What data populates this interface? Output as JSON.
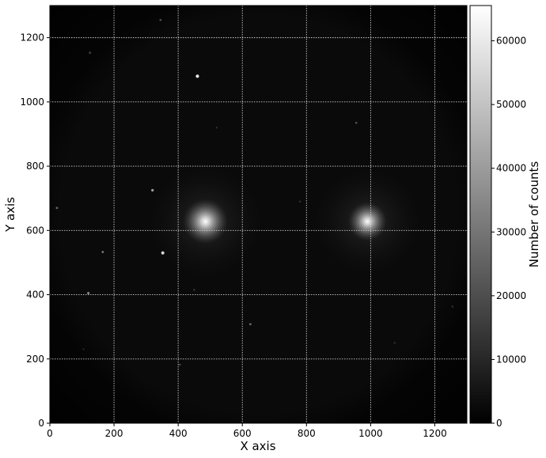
{
  "chart_data": {
    "type": "heatmap",
    "title": "",
    "xlabel": "X axis",
    "ylabel": "Y axis",
    "xlim": [
      0,
      1300
    ],
    "ylim": [
      0,
      1300
    ],
    "xticks": [
      0,
      200,
      400,
      600,
      800,
      1000,
      1200
    ],
    "yticks": [
      0,
      200,
      400,
      600,
      800,
      1000,
      1200
    ],
    "grid": true,
    "grid_style": "dotted",
    "colormap": "gray",
    "colorbar": {
      "label": "Number of counts",
      "range": [
        0,
        65535
      ],
      "ticks": [
        0,
        10000,
        20000,
        30000,
        40000,
        50000,
        60000
      ]
    },
    "image_description_points": [
      {
        "name": "galaxy-core-left",
        "x": 485,
        "y": 628,
        "value": 65000,
        "spread": 70,
        "halo": 180
      },
      {
        "name": "galaxy-core-right",
        "x": 990,
        "y": 628,
        "value": 65000,
        "spread": 60,
        "halo": 170
      },
      {
        "name": "star",
        "x": 460,
        "y": 1080,
        "value": 60000
      },
      {
        "name": "star",
        "x": 352,
        "y": 530,
        "value": 55000
      },
      {
        "name": "star",
        "x": 320,
        "y": 725,
        "value": 40000
      },
      {
        "name": "star",
        "x": 125,
        "y": 1153,
        "value": 35000
      },
      {
        "name": "star",
        "x": 345,
        "y": 1255,
        "value": 30000
      },
      {
        "name": "star",
        "x": 120,
        "y": 405,
        "value": 35000
      },
      {
        "name": "star",
        "x": 165,
        "y": 533,
        "value": 30000
      },
      {
        "name": "star",
        "x": 22,
        "y": 670,
        "value": 28000
      },
      {
        "name": "star",
        "x": 625,
        "y": 308,
        "value": 28000
      },
      {
        "name": "star",
        "x": 955,
        "y": 935,
        "value": 22000
      },
      {
        "name": "star",
        "x": 1200,
        "y": 1095,
        "value": 18000
      },
      {
        "name": "star",
        "x": 1255,
        "y": 363,
        "value": 20000
      },
      {
        "name": "star",
        "x": 105,
        "y": 230,
        "value": 18000
      },
      {
        "name": "star",
        "x": 405,
        "y": 182,
        "value": 20000
      },
      {
        "name": "star",
        "x": 450,
        "y": 415,
        "value": 16000
      },
      {
        "name": "star",
        "x": 520,
        "y": 920,
        "value": 14000
      },
      {
        "name": "star",
        "x": 1075,
        "y": 250,
        "value": 14000
      },
      {
        "name": "star",
        "x": 780,
        "y": 690,
        "value": 14000
      }
    ],
    "background_value": 1500,
    "vignette": "circular"
  },
  "colors": {
    "background": "#ffffff",
    "image_background": "#0a0a0a",
    "grid": "#cccccc",
    "axis": "#000000"
  }
}
